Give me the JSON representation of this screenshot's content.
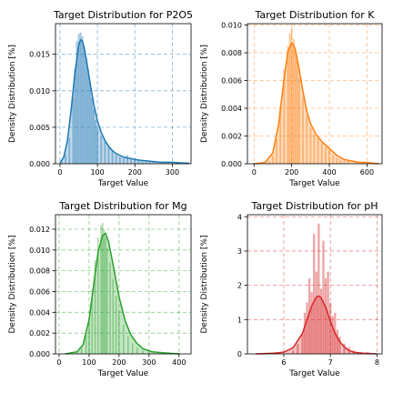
{
  "chart_data": [
    {
      "type": "area",
      "title": "Target Distribution for P2O5",
      "xlabel": "Target Value",
      "ylabel": "Density Distribution [%]",
      "color": "#1f77b4",
      "xlim": [
        -12,
        350
      ],
      "ylim": [
        0,
        0.0192
      ],
      "xticks": [
        0,
        100,
        200,
        300
      ],
      "xtick_labels": [
        "0",
        "100",
        "200",
        "300"
      ],
      "yticks": [
        0,
        0.005,
        0.01,
        0.015
      ],
      "ytick_labels": [
        "0.000",
        "0.005",
        "0.010",
        "0.015"
      ],
      "grid": true,
      "histogram": {
        "x": [
          5,
          15,
          25,
          35,
          40,
          45,
          50,
          55,
          60,
          65,
          70,
          75,
          80,
          85,
          90,
          95,
          100,
          110,
          120,
          130,
          140,
          150,
          160,
          170,
          180,
          190,
          200,
          210,
          220,
          230,
          240,
          250,
          260,
          270,
          280,
          290,
          300,
          310,
          320,
          330,
          340
        ],
        "y": [
          0.0003,
          0.0012,
          0.0035,
          0.009,
          0.013,
          0.0168,
          0.0178,
          0.018,
          0.0175,
          0.016,
          0.0145,
          0.013,
          0.0112,
          0.009,
          0.0075,
          0.006,
          0.0048,
          0.0038,
          0.003,
          0.0023,
          0.0017,
          0.0012,
          0.0009,
          0.0007,
          0.0012,
          0.0006,
          0.0005,
          0.0004,
          0.0003,
          0.0003,
          0.0003,
          0.0002,
          0.0001,
          0.0001,
          0.0002,
          0.0001,
          0.0001,
          0.0001,
          0.0001,
          0.0001,
          0.0001
        ]
      },
      "kde": {
        "x": [
          0,
          10,
          20,
          30,
          40,
          50,
          55,
          60,
          65,
          70,
          80,
          90,
          100,
          110,
          120,
          130,
          140,
          150,
          170,
          190,
          210,
          230,
          250,
          270,
          300,
          330,
          345
        ],
        "y": [
          0.0001,
          0.0009,
          0.0032,
          0.0075,
          0.0125,
          0.0162,
          0.017,
          0.0168,
          0.0158,
          0.0144,
          0.0112,
          0.0082,
          0.0059,
          0.0043,
          0.0032,
          0.0024,
          0.0018,
          0.0014,
          0.0009,
          0.0007,
          0.0005,
          0.0004,
          0.0003,
          0.0002,
          0.0002,
          0.0001,
          0.0001
        ]
      }
    },
    {
      "type": "area",
      "title": "Target Distribution for K",
      "xlabel": "Target Value",
      "ylabel": "Density Distribution [%]",
      "color": "#ff7f0e",
      "xlim": [
        -35,
        680
      ],
      "ylim": [
        0,
        0.0101
      ],
      "xticks": [
        0,
        200,
        400,
        600
      ],
      "xtick_labels": [
        "0",
        "200",
        "400",
        "600"
      ],
      "yticks": [
        0,
        0.002,
        0.004,
        0.006,
        0.008,
        0.01
      ],
      "ytick_labels": [
        "0.000",
        "0.002",
        "0.004",
        "0.006",
        "0.008",
        "0.010"
      ],
      "grid": true,
      "histogram": {
        "x": [
          80,
          100,
          120,
          140,
          160,
          180,
          190,
          200,
          210,
          220,
          230,
          240,
          260,
          280,
          300,
          320,
          340,
          360,
          380,
          400,
          420,
          440,
          460,
          480,
          500,
          540,
          580,
          620,
          660
        ],
        "y": [
          0.0002,
          0.0006,
          0.0018,
          0.0042,
          0.0068,
          0.0085,
          0.0094,
          0.0098,
          0.009,
          0.0082,
          0.0075,
          0.0062,
          0.0048,
          0.0035,
          0.0026,
          0.0021,
          0.0018,
          0.0015,
          0.0012,
          0.001,
          0.0006,
          0.0004,
          0.0003,
          0.0002,
          0.0002,
          0.0001,
          0.0001,
          0.0001,
          0.0001
        ]
      },
      "kde": {
        "x": [
          0,
          60,
          100,
          130,
          160,
          180,
          200,
          210,
          220,
          240,
          260,
          280,
          300,
          330,
          360,
          400,
          440,
          480,
          520,
          560,
          600,
          660
        ],
        "y": [
          0,
          0.0001,
          0.0008,
          0.0028,
          0.0062,
          0.0081,
          0.0087,
          0.0086,
          0.0082,
          0.0068,
          0.0052,
          0.0038,
          0.0029,
          0.0021,
          0.0016,
          0.0011,
          0.0006,
          0.0003,
          0.0002,
          0.0001,
          0.0001,
          0
        ]
      }
    },
    {
      "type": "area",
      "title": "Target Distribution for Mg",
      "xlabel": "Target Value",
      "ylabel": "Density Distribution [%]",
      "color": "#2ca02c",
      "xlim": [
        -12,
        440
      ],
      "ylim": [
        0,
        0.0134
      ],
      "xticks": [
        0,
        100,
        200,
        300,
        400
      ],
      "xtick_labels": [
        "0",
        "100",
        "200",
        "300",
        "400"
      ],
      "yticks": [
        0,
        0.002,
        0.004,
        0.006,
        0.008,
        0.01,
        0.012
      ],
      "ytick_labels": [
        "0.000",
        "0.002",
        "0.004",
        "0.006",
        "0.008",
        "0.010",
        "0.012"
      ],
      "grid": true,
      "histogram": {
        "x": [
          60,
          75,
          90,
          100,
          110,
          120,
          130,
          140,
          145,
          150,
          155,
          160,
          170,
          180,
          190,
          200,
          215,
          230,
          245,
          260,
          280,
          300,
          330,
          360,
          400
        ],
        "y": [
          0.0002,
          0.0006,
          0.0018,
          0.0035,
          0.0062,
          0.009,
          0.0112,
          0.0124,
          0.0126,
          0.012,
          0.0112,
          0.0102,
          0.0088,
          0.0072,
          0.0056,
          0.0042,
          0.0028,
          0.0017,
          0.001,
          0.0006,
          0.0003,
          0.0002,
          0.0001,
          0.0001,
          0.0001
        ]
      },
      "kde": {
        "x": [
          20,
          60,
          80,
          100,
          115,
          130,
          145,
          155,
          165,
          180,
          200,
          220,
          240,
          260,
          280,
          310,
          350,
          400
        ],
        "y": [
          0,
          0.0002,
          0.0009,
          0.0033,
          0.0066,
          0.0098,
          0.0114,
          0.0116,
          0.0108,
          0.0086,
          0.0055,
          0.0032,
          0.0018,
          0.001,
          0.0005,
          0.0002,
          0.0001,
          0
        ]
      }
    },
    {
      "type": "area",
      "title": "Target Distribution for pH",
      "xlabel": "Target Value",
      "ylabel": "Density Distribution [%]",
      "color": "#d62728",
      "xlim": [
        5.22,
        8.11
      ],
      "ylim": [
        0,
        4.06
      ],
      "xticks": [
        6,
        7,
        8
      ],
      "xtick_labels": [
        "6",
        "7",
        "8"
      ],
      "yticks": [
        0,
        1,
        2,
        3,
        4
      ],
      "ytick_labels": [
        "0",
        "1",
        "2",
        "3",
        "4"
      ],
      "grid": true,
      "histogram": {
        "x": [
          5.8,
          6.2,
          6.3,
          6.4,
          6.45,
          6.5,
          6.55,
          6.6,
          6.65,
          6.7,
          6.75,
          6.8,
          6.85,
          6.9,
          6.95,
          7.0,
          7.05,
          7.1,
          7.15,
          7.2,
          7.3,
          7.4,
          7.5,
          7.6,
          7.8
        ],
        "y": [
          0.05,
          0.1,
          0.3,
          0.6,
          1.2,
          1.5,
          2.2,
          1.8,
          3.5,
          2.4,
          3.8,
          1.9,
          3.3,
          2.2,
          2.4,
          1.5,
          1.1,
          1.2,
          0.7,
          0.5,
          0.3,
          0.2,
          0.1,
          0.05,
          0.05
        ]
      },
      "kde": {
        "x": [
          5.4,
          5.8,
          6.0,
          6.2,
          6.4,
          6.5,
          6.6,
          6.7,
          6.75,
          6.8,
          6.9,
          7.0,
          7.1,
          7.2,
          7.3,
          7.4,
          7.5,
          7.7,
          8.0
        ],
        "y": [
          0,
          0.02,
          0.05,
          0.18,
          0.6,
          1.0,
          1.4,
          1.66,
          1.69,
          1.64,
          1.36,
          0.95,
          0.6,
          0.36,
          0.2,
          0.1,
          0.05,
          0.02,
          0
        ]
      }
    }
  ]
}
